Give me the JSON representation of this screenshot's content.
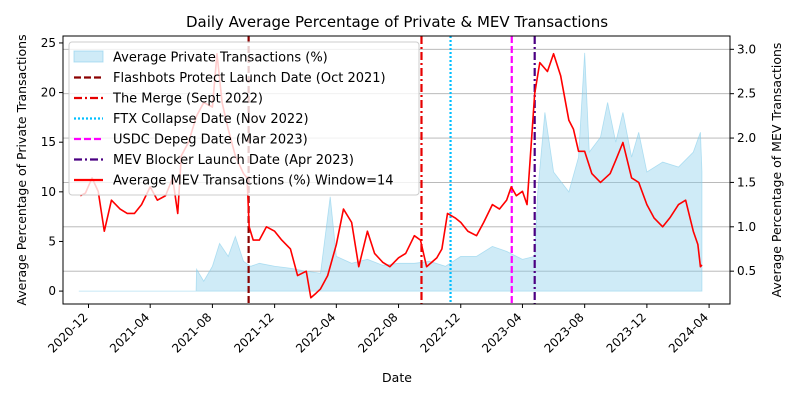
{
  "chart_data": {
    "type": "line",
    "title": "Daily Average Percentage of Private & MEV Transactions",
    "xlabel": "Date",
    "ylabel_left": "Average Percentage of Private Transactions",
    "ylabel_right": "Average Percentage of MEV Transactions",
    "colors": {
      "left_axis": "#0000ff",
      "right_axis": "#ff0000",
      "area": "#87ceeb",
      "mev_line": "#ff0000",
      "grid": "#b0b0b0"
    },
    "x_range": [
      "2020-10-12",
      "2024-05-12"
    ],
    "ylim_left": [
      -1.3,
      25.7
    ],
    "ylim_right": [
      0.13,
      3.15
    ],
    "x_ticks": [
      "2020-12",
      "2021-04",
      "2021-08",
      "2021-12",
      "2022-04",
      "2022-08",
      "2022-12",
      "2023-04",
      "2023-08",
      "2023-12",
      "2024-04"
    ],
    "y_ticks_left": [
      0,
      5,
      10,
      15,
      20,
      25
    ],
    "y_ticks_right": [
      0.5,
      1.0,
      1.5,
      2.0,
      2.5,
      3.0
    ],
    "grid": "horizontal lines at right-axis ticks",
    "legend_position": "top-left",
    "series": [
      {
        "name": "Average Private Transactions (%)",
        "axis": "left",
        "kind": "area",
        "points": [
          [
            "2020-11-12",
            0.0
          ],
          [
            "2021-01-01",
            0.0
          ],
          [
            "2021-04-01",
            0.0
          ],
          [
            "2021-06-30",
            0.0
          ],
          [
            "2021-07-01",
            2.2
          ],
          [
            "2021-07-15",
            1.0
          ],
          [
            "2021-08-01",
            2.5
          ],
          [
            "2021-08-15",
            4.8
          ],
          [
            "2021-09-01",
            3.5
          ],
          [
            "2021-09-15",
            5.5
          ],
          [
            "2021-10-01",
            3.0
          ],
          [
            "2021-10-15",
            2.5
          ],
          [
            "2021-11-01",
            2.8
          ],
          [
            "2021-12-01",
            2.5
          ],
          [
            "2022-01-01",
            2.3
          ],
          [
            "2022-02-01",
            2.0
          ],
          [
            "2022-03-01",
            1.8
          ],
          [
            "2022-03-20",
            9.5
          ],
          [
            "2022-04-01",
            3.5
          ],
          [
            "2022-05-01",
            2.8
          ],
          [
            "2022-06-01",
            3.2
          ],
          [
            "2022-07-01",
            2.6
          ],
          [
            "2022-08-01",
            2.8
          ],
          [
            "2022-09-01",
            2.8
          ],
          [
            "2022-10-01",
            3.0
          ],
          [
            "2022-11-01",
            2.5
          ],
          [
            "2022-12-01",
            3.5
          ],
          [
            "2023-01-01",
            3.5
          ],
          [
            "2023-02-01",
            4.5
          ],
          [
            "2023-03-01",
            4.0
          ],
          [
            "2023-04-01",
            3.2
          ],
          [
            "2023-04-25",
            3.5
          ],
          [
            "2023-05-01",
            10.0
          ],
          [
            "2023-05-15",
            18.0
          ],
          [
            "2023-06-01",
            12.0
          ],
          [
            "2023-07-01",
            10.0
          ],
          [
            "2023-07-20",
            13.5
          ],
          [
            "2023-08-01",
            24.0
          ],
          [
            "2023-08-10",
            14.0
          ],
          [
            "2023-09-01",
            15.5
          ],
          [
            "2023-09-15",
            19.0
          ],
          [
            "2023-10-01",
            15.0
          ],
          [
            "2023-10-15",
            18.0
          ],
          [
            "2023-11-01",
            13.5
          ],
          [
            "2023-11-15",
            16.0
          ],
          [
            "2023-12-01",
            12.0
          ],
          [
            "2024-01-01",
            13.0
          ],
          [
            "2024-02-01",
            12.5
          ],
          [
            "2024-03-01",
            14.0
          ],
          [
            "2024-03-15",
            16.0
          ],
          [
            "2024-03-18",
            12.0
          ]
        ]
      },
      {
        "name": "Average MEV Transactions (%) Window=14",
        "axis": "right",
        "kind": "line",
        "points": [
          [
            "2020-11-15",
            1.35
          ],
          [
            "2020-11-25",
            1.38
          ],
          [
            "2020-12-08",
            1.55
          ],
          [
            "2020-12-20",
            1.4
          ],
          [
            "2021-01-01",
            0.95
          ],
          [
            "2021-01-15",
            1.3
          ],
          [
            "2021-02-01",
            1.2
          ],
          [
            "2021-02-15",
            1.15
          ],
          [
            "2021-03-01",
            1.15
          ],
          [
            "2021-03-15",
            1.25
          ],
          [
            "2021-04-01",
            1.45
          ],
          [
            "2021-04-15",
            1.3
          ],
          [
            "2021-05-01",
            1.35
          ],
          [
            "2021-05-15",
            1.55
          ],
          [
            "2021-05-25",
            1.15
          ],
          [
            "2021-06-01",
            1.8
          ],
          [
            "2021-06-15",
            1.95
          ],
          [
            "2021-07-01",
            2.25
          ],
          [
            "2021-07-15",
            2.4
          ],
          [
            "2021-08-01",
            2.35
          ],
          [
            "2021-08-10",
            2.95
          ],
          [
            "2021-08-20",
            2.4
          ],
          [
            "2021-09-01",
            2.1
          ],
          [
            "2021-09-15",
            1.8
          ],
          [
            "2021-10-01",
            1.6
          ],
          [
            "2021-10-08",
            1.55
          ],
          [
            "2021-10-12",
            1.0
          ],
          [
            "2021-10-20",
            0.85
          ],
          [
            "2021-11-01",
            0.85
          ],
          [
            "2021-11-15",
            1.0
          ],
          [
            "2021-12-01",
            0.95
          ],
          [
            "2021-12-15",
            0.85
          ],
          [
            "2022-01-01",
            0.75
          ],
          [
            "2022-01-15",
            0.45
          ],
          [
            "2022-02-01",
            0.5
          ],
          [
            "2022-02-10",
            0.2
          ],
          [
            "2022-02-20",
            0.25
          ],
          [
            "2022-03-01",
            0.3
          ],
          [
            "2022-03-15",
            0.45
          ],
          [
            "2022-04-01",
            0.8
          ],
          [
            "2022-04-15",
            1.2
          ],
          [
            "2022-05-01",
            1.05
          ],
          [
            "2022-05-15",
            0.55
          ],
          [
            "2022-06-01",
            0.95
          ],
          [
            "2022-06-15",
            0.7
          ],
          [
            "2022-07-01",
            0.6
          ],
          [
            "2022-07-15",
            0.55
          ],
          [
            "2022-08-01",
            0.65
          ],
          [
            "2022-08-15",
            0.7
          ],
          [
            "2022-09-01",
            0.9
          ],
          [
            "2022-09-13",
            0.85
          ],
          [
            "2022-09-25",
            0.55
          ],
          [
            "2022-10-15",
            0.65
          ],
          [
            "2022-10-25",
            0.75
          ],
          [
            "2022-11-05",
            1.15
          ],
          [
            "2022-11-20",
            1.1
          ],
          [
            "2022-12-01",
            1.05
          ],
          [
            "2022-12-15",
            0.95
          ],
          [
            "2023-01-01",
            0.9
          ],
          [
            "2023-01-15",
            1.05
          ],
          [
            "2023-02-01",
            1.25
          ],
          [
            "2023-02-15",
            1.2
          ],
          [
            "2023-03-01",
            1.3
          ],
          [
            "2023-03-10",
            1.45
          ],
          [
            "2023-03-20",
            1.35
          ],
          [
            "2023-04-01",
            1.4
          ],
          [
            "2023-04-10",
            1.25
          ],
          [
            "2023-04-25",
            2.5
          ],
          [
            "2023-05-05",
            2.85
          ],
          [
            "2023-05-20",
            2.75
          ],
          [
            "2023-06-01",
            2.95
          ],
          [
            "2023-06-15",
            2.7
          ],
          [
            "2023-07-01",
            2.2
          ],
          [
            "2023-07-10",
            2.1
          ],
          [
            "2023-07-20",
            1.85
          ],
          [
            "2023-08-01",
            1.85
          ],
          [
            "2023-08-15",
            1.6
          ],
          [
            "2023-09-01",
            1.5
          ],
          [
            "2023-09-20",
            1.6
          ],
          [
            "2023-10-01",
            1.75
          ],
          [
            "2023-10-15",
            1.95
          ],
          [
            "2023-11-01",
            1.55
          ],
          [
            "2023-11-15",
            1.5
          ],
          [
            "2023-12-01",
            1.25
          ],
          [
            "2023-12-15",
            1.1
          ],
          [
            "2024-01-01",
            1.0
          ],
          [
            "2024-01-15",
            1.1
          ],
          [
            "2024-02-01",
            1.25
          ],
          [
            "2024-02-15",
            1.3
          ],
          [
            "2024-03-01",
            0.95
          ],
          [
            "2024-03-10",
            0.8
          ],
          [
            "2024-03-15",
            0.55
          ],
          [
            "2024-03-18",
            0.57
          ]
        ]
      }
    ],
    "events": [
      {
        "name": "Flashbots Protect Launch Date (Oct 2021)",
        "date": "2021-10-11",
        "color": "#8b0000",
        "dash": "dashed"
      },
      {
        "name": "The Merge (Sept 2022)",
        "date": "2022-09-15",
        "color": "#e60000",
        "dash": "dashdot"
      },
      {
        "name": "FTX Collapse Date (Nov 2022)",
        "date": "2022-11-11",
        "color": "#00bfff",
        "dash": "dotted"
      },
      {
        "name": "USDC Depeg Date (Mar 2023)",
        "date": "2023-03-11",
        "color": "#ff00ff",
        "dash": "dashed"
      },
      {
        "name": "MEV Blocker Launch Date (Apr 2023)",
        "date": "2023-04-25",
        "color": "#4b0082",
        "dash": "dashdot"
      }
    ]
  }
}
